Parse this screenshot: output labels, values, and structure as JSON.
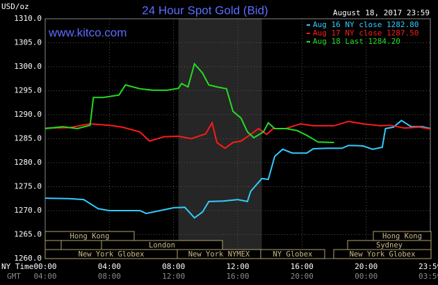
{
  "chart_data": {
    "type": "line",
    "title": "24 Hour Spot Gold (Bid)",
    "timestamp": "August 18, 2017 23:59",
    "site": "www.kitco.com",
    "y_label": "USD/oz",
    "x_label": "NY Time",
    "x2_label": "GMT",
    "xlim": [
      0,
      24
    ],
    "ylim": [
      1260,
      1310
    ],
    "xticks": [
      {
        "value": 0,
        "label": "00:00"
      },
      {
        "value": 4,
        "label": "04:00"
      },
      {
        "value": 8,
        "label": "08:00"
      },
      {
        "value": 12,
        "label": "12:00"
      },
      {
        "value": 16,
        "label": "16:00"
      },
      {
        "value": 20,
        "label": "20:00"
      },
      {
        "value": 23.983,
        "label": "23:59"
      }
    ],
    "x2ticks": [
      {
        "value": 0,
        "label": "04:00"
      },
      {
        "value": 4,
        "label": "08:00"
      },
      {
        "value": 8,
        "label": "12:00"
      },
      {
        "value": 12,
        "label": "16:00"
      },
      {
        "value": 16,
        "label": "20:00"
      },
      {
        "value": 20,
        "label": "00:00"
      },
      {
        "value": 23.983,
        "label": "03:59"
      }
    ],
    "yticks": [
      {
        "value": 1260,
        "label": "1260.0"
      },
      {
        "value": 1265,
        "label": "1265.0"
      },
      {
        "value": 1270,
        "label": "1270.0"
      },
      {
        "value": 1275,
        "label": "1275.0"
      },
      {
        "value": 1280,
        "label": "1280.0"
      },
      {
        "value": 1285,
        "label": "1285.0"
      },
      {
        "value": 1290,
        "label": "1290.0"
      },
      {
        "value": 1295,
        "label": "1295.0"
      },
      {
        "value": 1300,
        "label": "1300.0"
      },
      {
        "value": 1305,
        "label": "1305.0"
      },
      {
        "value": 1310,
        "label": "1310.0"
      }
    ],
    "grid": true,
    "shaded_range": [
      8.3,
      13.5
    ],
    "sessions": [
      "Hong Kong",
      "London",
      "New York Globex",
      "New York NYMEX",
      "NY Globex",
      "New York Globex",
      "Sydney",
      "Hong Kong"
    ],
    "series": [
      {
        "name": "Aug 16 NY close 1282.80",
        "color": "#33ccff",
        "x": [
          0,
          1.5,
          2.4,
          3.3,
          4,
          5.9,
          6.3,
          8,
          8.7,
          9.3,
          9.8,
          10.2,
          11.1,
          12,
          12.6,
          12.8,
          13.5,
          13.9,
          14.3,
          14.8,
          15.4,
          16.3,
          16.7,
          17.6,
          18.5,
          18.9,
          19.8,
          20.4,
          21,
          21.2,
          21.7,
          22.2,
          22.8,
          23.5,
          24
        ],
        "values": [
          1272.6,
          1272.5,
          1272.3,
          1270.4,
          1270,
          1270,
          1269.4,
          1270.6,
          1270.7,
          1268.5,
          1269.7,
          1271.9,
          1272,
          1272.3,
          1271.9,
          1274,
          1276.7,
          1276.5,
          1281.3,
          1282.8,
          1282,
          1282,
          1282.9,
          1283,
          1283,
          1283.6,
          1283.5,
          1282.8,
          1283.2,
          1287.1,
          1287.4,
          1288.8,
          1287.5,
          1287.5,
          1287.1
        ]
      },
      {
        "name": "Aug 17 NY close 1287.50",
        "color": "#ff1a1a",
        "x": [
          0,
          1.5,
          2.8,
          4,
          4.8,
          5.9,
          6.5,
          7.4,
          8.3,
          9.1,
          10,
          10.4,
          10.7,
          11.2,
          11.7,
          12.2,
          12.6,
          13.3,
          13.8,
          14.2,
          15,
          15.9,
          16.7,
          18,
          18.9,
          19.8,
          20.9,
          21.5,
          22.4,
          23.3,
          24
        ],
        "values": [
          1287.2,
          1287.3,
          1288.1,
          1287.8,
          1287.4,
          1286.4,
          1284.5,
          1285.4,
          1285.5,
          1285,
          1286,
          1288.3,
          1284.2,
          1283,
          1284.2,
          1284.5,
          1285.4,
          1287.1,
          1285.9,
          1287.1,
          1287.1,
          1288.1,
          1287.7,
          1287.7,
          1288.6,
          1288.1,
          1287.7,
          1287.8,
          1287.2,
          1287.4,
          1287
        ]
      },
      {
        "name": "Aug 18 Last 1284.20",
        "color": "#22dd22",
        "x": [
          0,
          1.1,
          2,
          2.8,
          3,
          3.6,
          4.6,
          5,
          5.9,
          6.7,
          7.6,
          8.3,
          8.5,
          8.9,
          9.3,
          9.8,
          10.2,
          10.7,
          11.3,
          11.7,
          12.2,
          12.6,
          13,
          13.6,
          13.9,
          14.3,
          15,
          15.7,
          16.3,
          17,
          18
        ],
        "values": [
          1287.1,
          1287.5,
          1287.1,
          1287.8,
          1293.6,
          1293.6,
          1294.1,
          1296.2,
          1295.4,
          1295.1,
          1295.1,
          1295.5,
          1296.5,
          1295.8,
          1300.6,
          1298.7,
          1296.2,
          1295.8,
          1295.4,
          1290.7,
          1289.3,
          1286.4,
          1285.2,
          1286.4,
          1288.3,
          1287.1,
          1287.1,
          1286.7,
          1285.7,
          1284.3,
          1284.2
        ]
      }
    ]
  }
}
